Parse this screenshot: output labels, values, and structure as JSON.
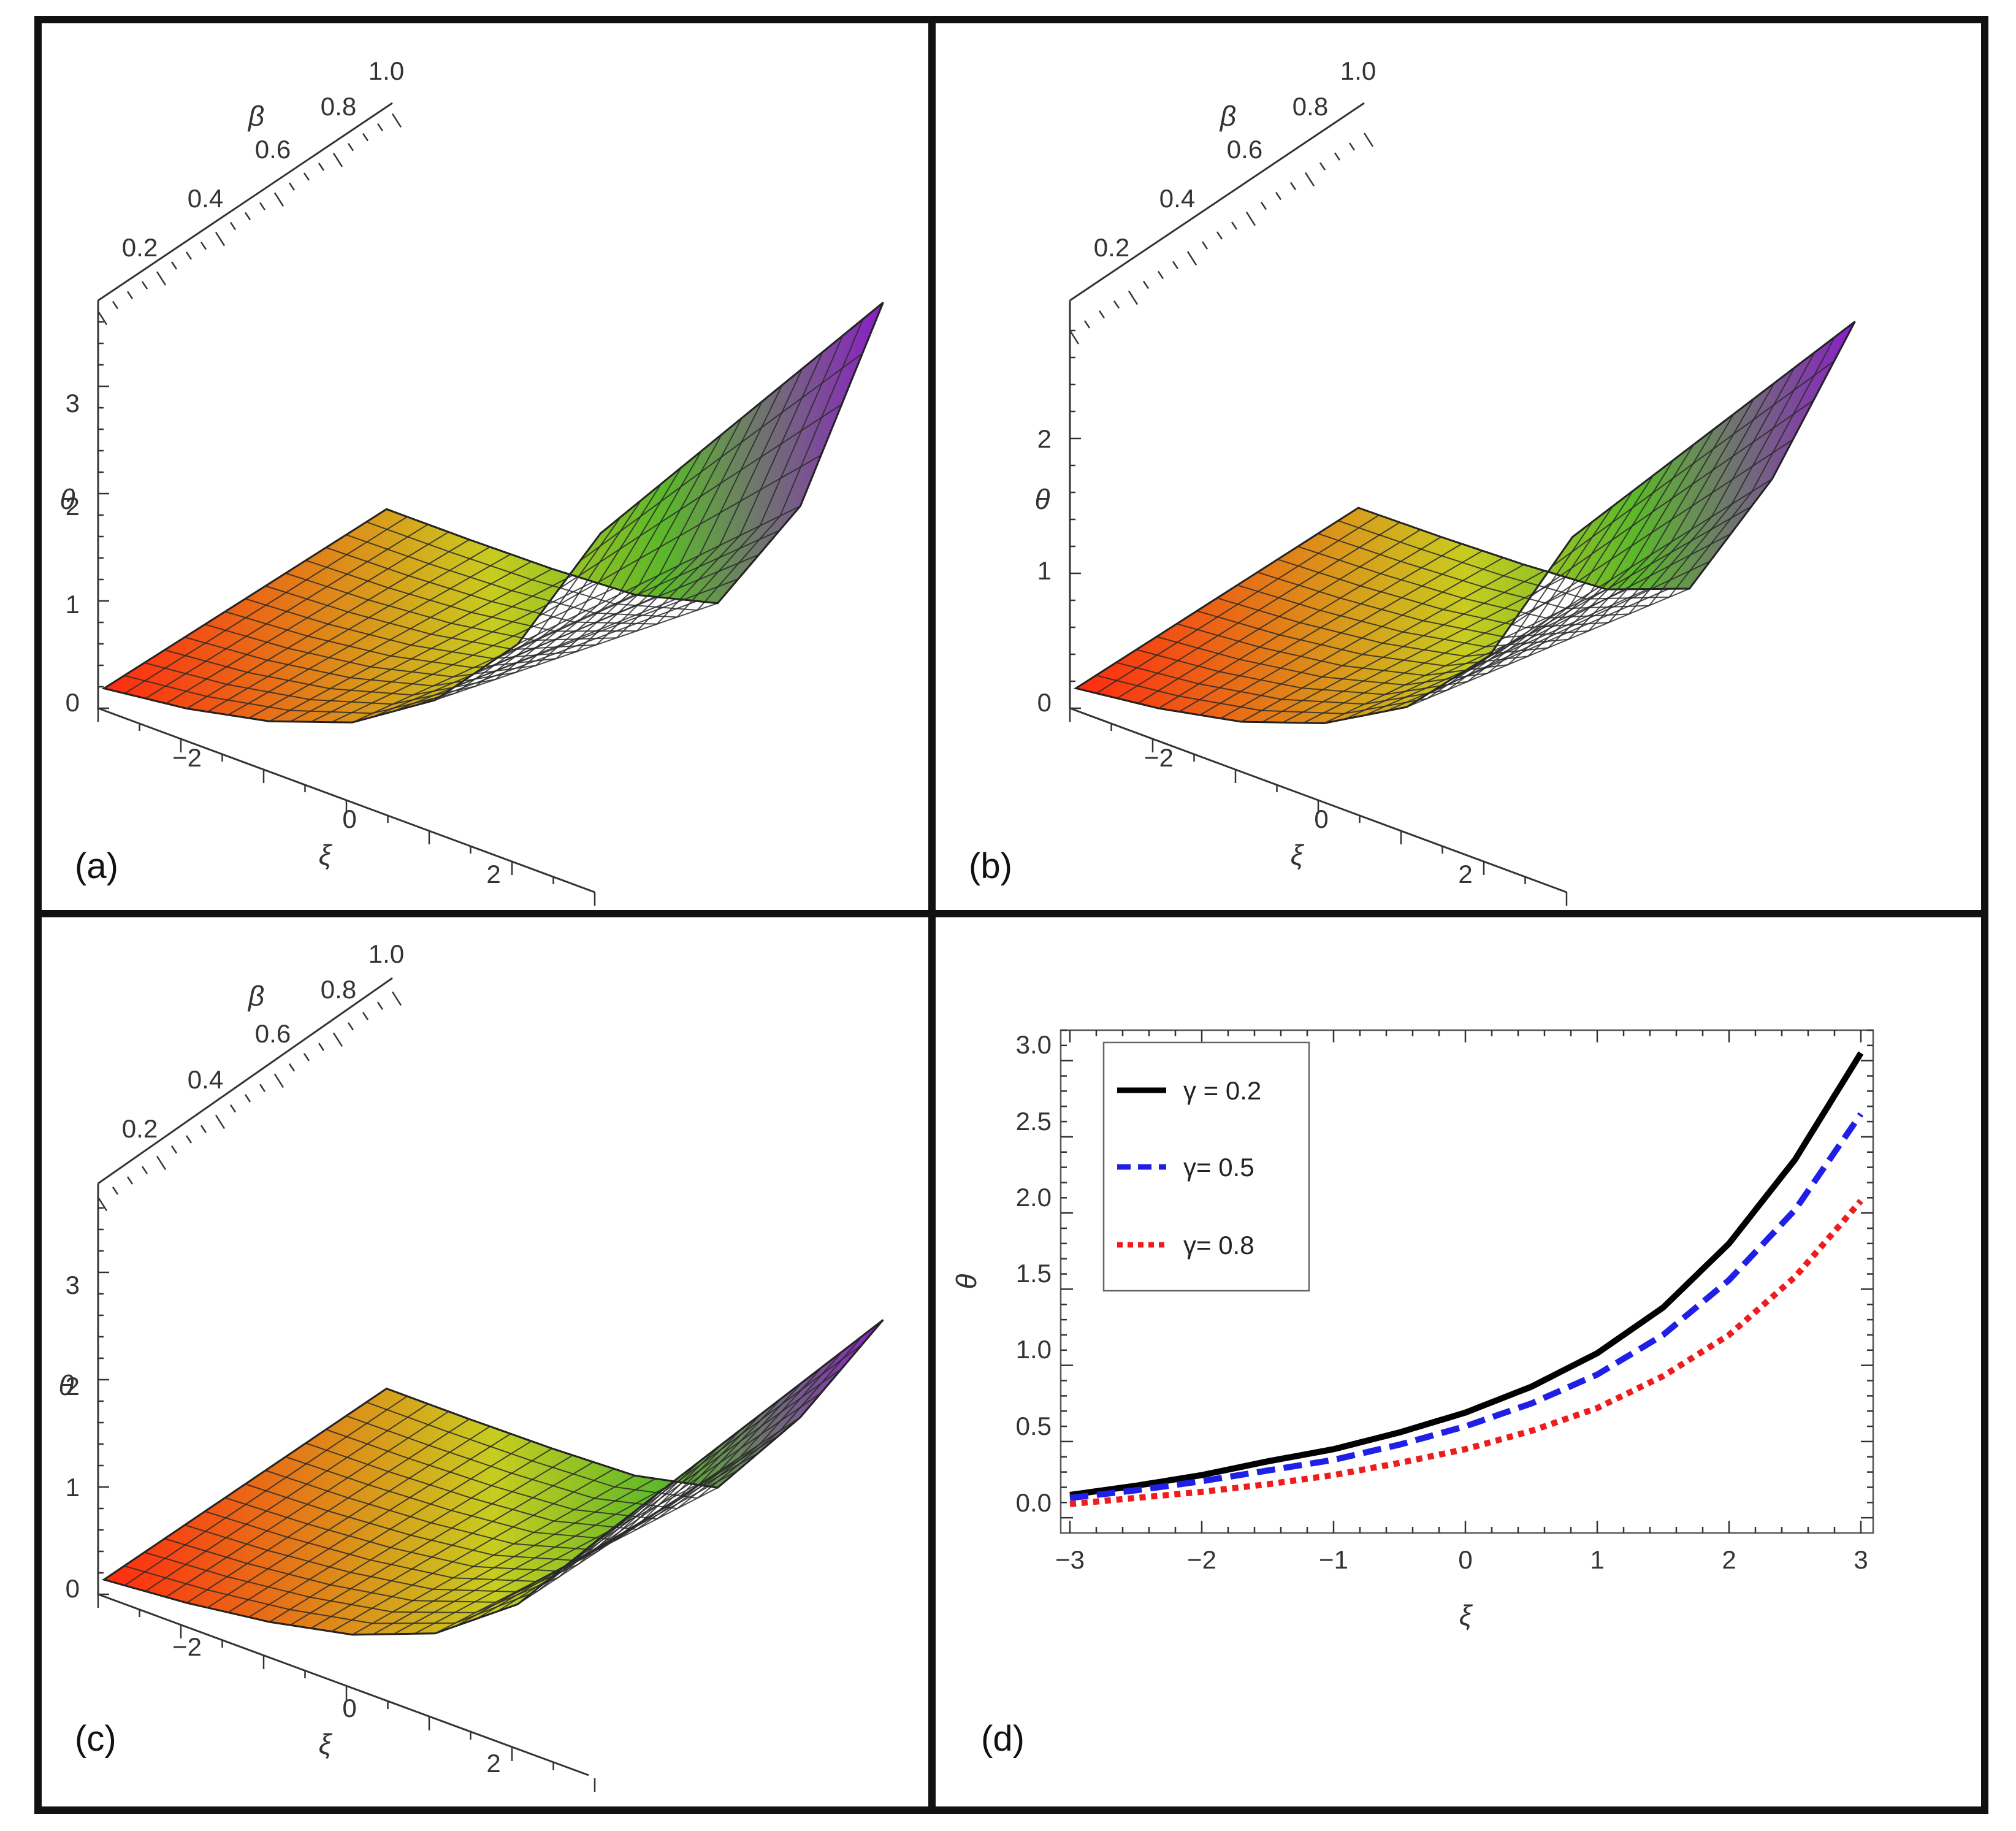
{
  "colors": {
    "series_black": "#000000",
    "series_blue": "#1f1fe6",
    "series_red": "#ee1c1c",
    "surface_low": "#ff2a10",
    "surface_mid": "#c8cc20",
    "surface_green": "#5bb82a",
    "surface_high": "#8a1ec8"
  },
  "panels": [
    {
      "label": "(a)",
      "type": "surface3d",
      "axes": {
        "x_title": "ξ",
        "x_ticks": [
          "−2",
          "0",
          "2"
        ],
        "y_title": "β",
        "y_ticks": [
          "0.2",
          "0.4",
          "0.6",
          "0.8",
          "1.0"
        ],
        "z_title": "θ",
        "z_ticks": [
          "0",
          "1",
          "2",
          "3"
        ]
      }
    },
    {
      "label": "(b)",
      "type": "surface3d",
      "axes": {
        "x_title": "ξ",
        "x_ticks": [
          "−2",
          "0",
          "2"
        ],
        "y_title": "β",
        "y_ticks": [
          "0.2",
          "0.4",
          "0.6",
          "0.8",
          "1.0"
        ],
        "z_title": "θ",
        "z_ticks": [
          "0",
          "1",
          "2"
        ]
      }
    },
    {
      "label": "(c)",
      "type": "surface3d",
      "axes": {
        "x_title": "ξ",
        "x_ticks": [
          "−2",
          "0",
          "2"
        ],
        "y_title": "β",
        "y_ticks": [
          "0.2",
          "0.4",
          "0.6",
          "0.8",
          "1.0"
        ],
        "z_title": "θ",
        "z_ticks": [
          "0",
          "1",
          "2",
          "3"
        ]
      }
    }
  ],
  "chart_data": [
    {
      "panel": "(a)",
      "type": "surface3d",
      "xlabel": "ξ",
      "ylabel": "β",
      "zlabel": "θ",
      "xlim": [
        -3,
        3
      ],
      "ylim": [
        0,
        1
      ],
      "zlim": [
        0,
        3.7
      ],
      "z_at_beta_low": {
        "x": [
          -3,
          -2,
          -1,
          0,
          1,
          2,
          3
        ],
        "z": [
          0.15,
          0.25,
          0.42,
          0.7,
          1.2,
          2.0,
          3.3
        ]
      },
      "z_at_beta_high": {
        "x": [
          -3,
          -2,
          -1,
          0,
          1,
          2,
          3
        ],
        "z": [
          0.05,
          0.05,
          0.06,
          0.1,
          0.3,
          1.5,
          3.7
        ]
      }
    },
    {
      "panel": "(b)",
      "type": "surface3d",
      "xlabel": "ξ",
      "ylabel": "β",
      "zlabel": "θ",
      "xlim": [
        -3,
        3
      ],
      "ylim": [
        0,
        1
      ],
      "zlim": [
        0,
        2.8
      ],
      "z_at_beta_low": {
        "x": [
          -3,
          -2,
          -1,
          0,
          1,
          2,
          3
        ],
        "z": [
          0.12,
          0.2,
          0.33,
          0.55,
          0.9,
          1.5,
          2.6
        ]
      },
      "z_at_beta_high": {
        "x": [
          -3,
          -2,
          -1,
          0,
          1,
          2,
          3
        ],
        "z": [
          0.05,
          0.06,
          0.08,
          0.12,
          0.35,
          1.4,
          2.8
        ]
      }
    },
    {
      "panel": "(c)",
      "type": "surface3d",
      "xlabel": "ξ",
      "ylabel": "β",
      "zlabel": "θ",
      "xlim": [
        -3,
        3
      ],
      "ylim": [
        0,
        1
      ],
      "zlim": [
        0,
        3.7
      ],
      "z_at_beta_low": {
        "x": [
          -3,
          -2,
          -1,
          0,
          1,
          2,
          3
        ],
        "z": [
          0.1,
          0.17,
          0.28,
          0.45,
          0.75,
          1.3,
          2.2
        ]
      },
      "z_at_beta_high": {
        "x": [
          -3,
          -2,
          -1,
          0,
          1,
          2,
          3
        ],
        "z": [
          0.04,
          0.04,
          0.05,
          0.08,
          0.25,
          1.2,
          2.4
        ]
      }
    },
    {
      "panel": "(d)",
      "label": "(d)",
      "type": "line",
      "xlabel": "ξ",
      "ylabel": "θ",
      "xlim": [
        -3,
        3
      ],
      "ylim": [
        -0.1,
        3.2
      ],
      "x_ticks": [
        "−3",
        "−2",
        "−1",
        "0",
        "1",
        "2",
        "3"
      ],
      "y_ticks": [
        "0.0",
        "0.5",
        "1.0",
        "1.5",
        "2.0",
        "2.5",
        "3.0"
      ],
      "legend_position": "top-left",
      "x": [
        -3,
        -2.5,
        -2,
        -1.5,
        -1,
        -0.5,
        0,
        0.5,
        1,
        1.5,
        2,
        2.5,
        3
      ],
      "series": [
        {
          "name": "γ = 0.2",
          "style": "solid",
          "color": "#000000",
          "values": [
            0.15,
            0.21,
            0.28,
            0.37,
            0.45,
            0.56,
            0.69,
            0.86,
            1.08,
            1.38,
            1.8,
            2.35,
            3.05
          ]
        },
        {
          "name": "γ= 0.5",
          "style": "dashed",
          "color": "#1f1fe6",
          "values": [
            0.13,
            0.18,
            0.24,
            0.31,
            0.38,
            0.48,
            0.6,
            0.75,
            0.94,
            1.2,
            1.56,
            2.02,
            2.65
          ]
        },
        {
          "name": "γ= 0.8",
          "style": "dotted",
          "color": "#ee1c1c",
          "values": [
            0.09,
            0.13,
            0.17,
            0.22,
            0.28,
            0.36,
            0.45,
            0.57,
            0.72,
            0.93,
            1.2,
            1.58,
            2.08
          ]
        }
      ]
    }
  ]
}
